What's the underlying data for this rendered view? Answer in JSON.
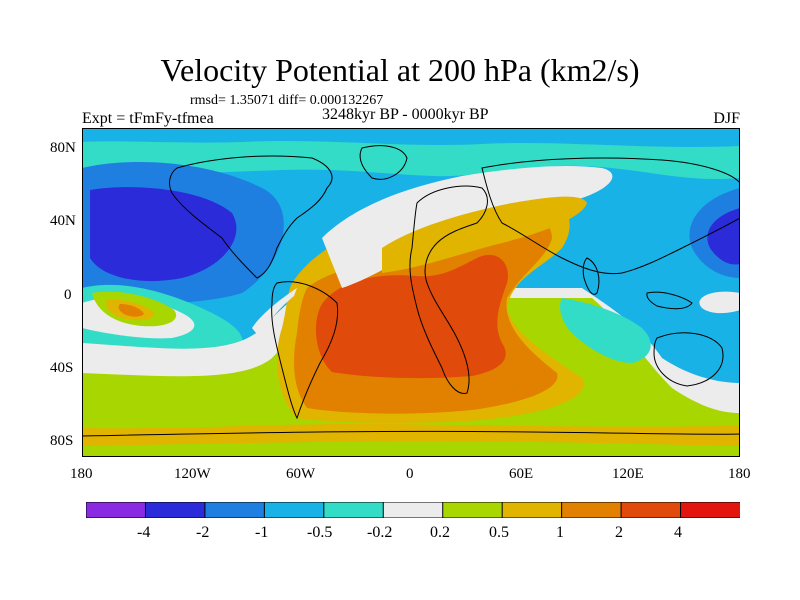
{
  "title": "Velocity Potential at 200 hPa (km2/s)",
  "stats": "rmsd= 1.35071 diff= 0.000132267",
  "experiment": "Expt = tFmFy-tfmea",
  "period": "3248kyr BP - 0000kyr BP",
  "season": "DJF",
  "axes": {
    "y_labels": [
      "80N",
      "40N",
      "0",
      "40S",
      "80S"
    ],
    "x_labels": [
      "180",
      "120W",
      "60W",
      "0",
      "60E",
      "120E",
      "180"
    ]
  },
  "colorbar": {
    "labels": [
      "-4",
      "-2",
      "-1",
      "-0.5",
      "-0.2",
      "0.2",
      "0.5",
      "1",
      "2",
      "4"
    ],
    "colors": [
      "#8a2be2",
      "#2b2bd9",
      "#1f7fe0",
      "#19b2e6",
      "#33dcc6",
      "#ececec",
      "#a8d600",
      "#e1b400",
      "#e28000",
      "#e04a0a",
      "#e3150f"
    ]
  }
}
